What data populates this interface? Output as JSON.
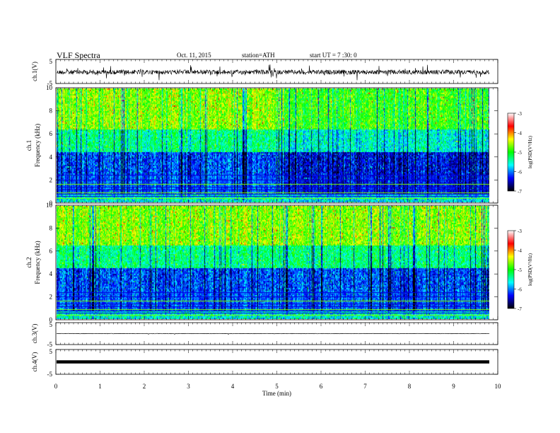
{
  "header": {
    "title": "VLF  Spectra",
    "date": "Oct. 11, 2015",
    "station": "station=ATH",
    "start": "start  UT  =   7  :30: 0"
  },
  "panels": {
    "ch1_wave": {
      "label": "ch.1(V)",
      "ticks": [
        "5",
        "-5"
      ]
    },
    "ch1_spec": {
      "label": "ch.1",
      "sublabel": "Frequency  (kHz)",
      "ticks": [
        "0",
        "2",
        "4",
        "6",
        "8",
        "10"
      ]
    },
    "ch2_spec": {
      "label": "ch.2",
      "sublabel": "Frequency  (kHz)",
      "ticks": [
        "0",
        "2",
        "4",
        "6",
        "8",
        "10"
      ]
    },
    "ch3_wave": {
      "label": "ch.3(V)",
      "ticks": [
        "5",
        "-5"
      ]
    },
    "ch4_wave": {
      "label": "ch.4(V)",
      "ticks": [
        "5",
        "-5"
      ]
    }
  },
  "colorbar": {
    "label": "log(PSD(V²/Hz)",
    "ticks": [
      "-3",
      "-4",
      "-5",
      "-6",
      "-7"
    ],
    "colors": [
      "#ffffff",
      "#ff0000",
      "#ffff00",
      "#00ff00",
      "#00ffff",
      "#0000ff",
      "#000000"
    ]
  },
  "chart_data": [
    {
      "type": "line",
      "title": "ch.1(V)",
      "ylabel": "ch.1(V)",
      "xlabel": "",
      "xlim": [
        0,
        10
      ],
      "ylim": [
        -5,
        5
      ],
      "x_unit": "min"
    },
    {
      "type": "heatmap",
      "title": "ch.1",
      "ylabel": "Frequency  (kHz)",
      "xlim": [
        0,
        10
      ],
      "ylim": [
        0,
        10
      ],
      "colorbar_label": "log(PSD(V²/Hz)",
      "clim": [
        -7,
        -3
      ]
    },
    {
      "type": "heatmap",
      "title": "ch.2",
      "ylabel": "Frequency  (kHz)",
      "xlim": [
        0,
        10
      ],
      "ylim": [
        0,
        10
      ],
      "colorbar_label": "log(PSD(V²/Hz)",
      "clim": [
        -7,
        -3
      ]
    },
    {
      "type": "line",
      "title": "ch.3(V)",
      "ylabel": "ch.3(V)",
      "xlim": [
        0,
        10
      ],
      "ylim": [
        -5,
        5
      ]
    },
    {
      "type": "line",
      "title": "ch.4(V)",
      "ylabel": "ch.4(V)",
      "xlabel": "Time  (min)",
      "xlim": [
        0,
        10
      ],
      "ylim": [
        -5,
        5
      ],
      "x_ticks": [
        "0",
        "1",
        "2",
        "3",
        "4",
        "5",
        "6",
        "7",
        "8",
        "9",
        "10"
      ]
    }
  ],
  "xaxis": {
    "label": "Time  (min)",
    "ticks": [
      "0",
      "1",
      "2",
      "3",
      "4",
      "5",
      "6",
      "7",
      "8",
      "9",
      "10"
    ]
  }
}
